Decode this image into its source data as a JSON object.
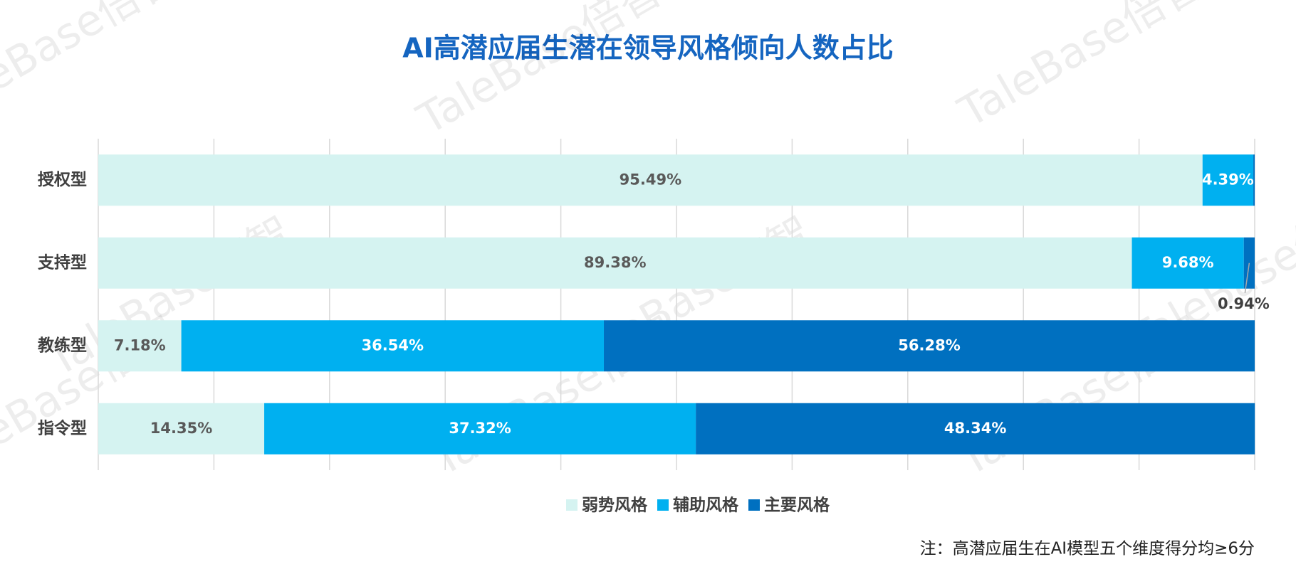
{
  "chart_data": {
    "type": "stacked-bar-horizontal",
    "title": "AI高潜应届生潜在领导风格倾向人数占比",
    "categories": [
      "授权型",
      "支持型",
      "教练型",
      "指令型"
    ],
    "series": [
      {
        "name": "弱势风格",
        "color": "#d5f3f1",
        "values": [
          95.49,
          89.38,
          7.18,
          14.35
        ],
        "value_labels": [
          "95.49%",
          "89.38%",
          "7.18%",
          "14.35%"
        ]
      },
      {
        "name": "辅助风格",
        "color": "#00b0f0",
        "values": [
          4.39,
          9.68,
          36.54,
          37.32
        ],
        "value_labels": [
          "4.39%",
          "9.68%",
          "36.54%",
          "37.32%"
        ]
      },
      {
        "name": "主要风格",
        "color": "#0070c0",
        "values": [
          0.12,
          0.94,
          56.28,
          48.34
        ],
        "value_labels": [
          null,
          "0.94%",
          "56.28%",
          "48.34%"
        ]
      }
    ],
    "xlim": [
      0,
      100
    ],
    "xticks": [
      0,
      10,
      20,
      30,
      40,
      50,
      60,
      70,
      80,
      90,
      100
    ],
    "grid": true,
    "legend": "bottom",
    "note": "注：高潜应届生在AI模型五个维度得分均≥6分",
    "watermark": "TaleBase倍智"
  }
}
